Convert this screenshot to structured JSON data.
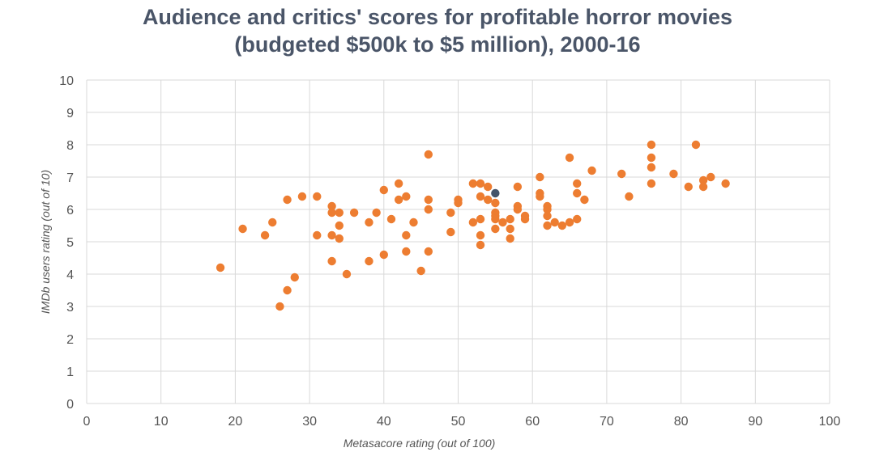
{
  "chart_data": {
    "type": "scatter",
    "title_line1": "Audience and critics' scores for profitable horror movies",
    "title_line2": "(budgeted $500k to $5 million), 2000-16",
    "xlabel": "Metasacore rating (out of 100)",
    "ylabel": "IMDb users rating (out of 10)",
    "xlim": [
      0,
      100
    ],
    "ylim": [
      0,
      10
    ],
    "x_ticks": [
      "0",
      "10",
      "20",
      "30",
      "40",
      "50",
      "60",
      "70",
      "80",
      "90",
      "100"
    ],
    "y_ticks": [
      "0",
      "1",
      "2",
      "3",
      "4",
      "5",
      "6",
      "7",
      "8",
      "9",
      "10"
    ],
    "grid": true,
    "legend": "none",
    "colors": {
      "points": "#ed7d31",
      "highlight": "#44546a",
      "grid": "#d9d9d9",
      "title": "#4a5568"
    },
    "points": [
      [
        18,
        4.2
      ],
      [
        21,
        5.4
      ],
      [
        24,
        5.2
      ],
      [
        25,
        5.6
      ],
      [
        26,
        3.0
      ],
      [
        27,
        3.5
      ],
      [
        27,
        6.3
      ],
      [
        28,
        3.9
      ],
      [
        29,
        6.4
      ],
      [
        31,
        5.2
      ],
      [
        31,
        6.4
      ],
      [
        33,
        6.1
      ],
      [
        33,
        5.9
      ],
      [
        33,
        5.2
      ],
      [
        33,
        4.4
      ],
      [
        34,
        5.9
      ],
      [
        34,
        5.5
      ],
      [
        34,
        5.1
      ],
      [
        35,
        4.0
      ],
      [
        36,
        5.9
      ],
      [
        38,
        5.6
      ],
      [
        38,
        4.4
      ],
      [
        39,
        5.9
      ],
      [
        40,
        6.6
      ],
      [
        40,
        4.6
      ],
      [
        41,
        5.7
      ],
      [
        42,
        6.8
      ],
      [
        42,
        6.3
      ],
      [
        43,
        6.4
      ],
      [
        43,
        5.2
      ],
      [
        43,
        4.7
      ],
      [
        44,
        5.6
      ],
      [
        45,
        4.1
      ],
      [
        46,
        7.7
      ],
      [
        46,
        6.3
      ],
      [
        46,
        6.0
      ],
      [
        46,
        4.7
      ],
      [
        49,
        5.9
      ],
      [
        49,
        5.3
      ],
      [
        50,
        6.3
      ],
      [
        50,
        6.2
      ],
      [
        52,
        6.8
      ],
      [
        52,
        5.6
      ],
      [
        53,
        6.8
      ],
      [
        53,
        6.4
      ],
      [
        53,
        5.7
      ],
      [
        53,
        5.2
      ],
      [
        53,
        4.9
      ],
      [
        54,
        6.7
      ],
      [
        54,
        6.3
      ],
      [
        55,
        6.2
      ],
      [
        55,
        5.9
      ],
      [
        55,
        5.8
      ],
      [
        55,
        5.7
      ],
      [
        55,
        5.4
      ],
      [
        56,
        5.6
      ],
      [
        57,
        5.7
      ],
      [
        57,
        5.4
      ],
      [
        57,
        5.1
      ],
      [
        58,
        6.7
      ],
      [
        58,
        6.1
      ],
      [
        58,
        6.0
      ],
      [
        59,
        5.8
      ],
      [
        59,
        5.7
      ],
      [
        61,
        7.0
      ],
      [
        61,
        6.5
      ],
      [
        61,
        6.4
      ],
      [
        62,
        6.1
      ],
      [
        62,
        6.0
      ],
      [
        62,
        5.8
      ],
      [
        62,
        5.5
      ],
      [
        63,
        5.6
      ],
      [
        64,
        5.5
      ],
      [
        65,
        7.6
      ],
      [
        65,
        5.6
      ],
      [
        66,
        6.8
      ],
      [
        66,
        6.5
      ],
      [
        66,
        5.7
      ],
      [
        67,
        6.3
      ],
      [
        68,
        7.2
      ],
      [
        72,
        7.1
      ],
      [
        73,
        6.4
      ],
      [
        76,
        8.0
      ],
      [
        76,
        7.6
      ],
      [
        76,
        7.3
      ],
      [
        76,
        6.8
      ],
      [
        79,
        7.1
      ],
      [
        81,
        6.7
      ],
      [
        82,
        8.0
      ],
      [
        83,
        6.9
      ],
      [
        83,
        6.7
      ],
      [
        84,
        7.0
      ],
      [
        86,
        6.8
      ]
    ],
    "highlight_points": [
      [
        55,
        6.5
      ]
    ]
  }
}
